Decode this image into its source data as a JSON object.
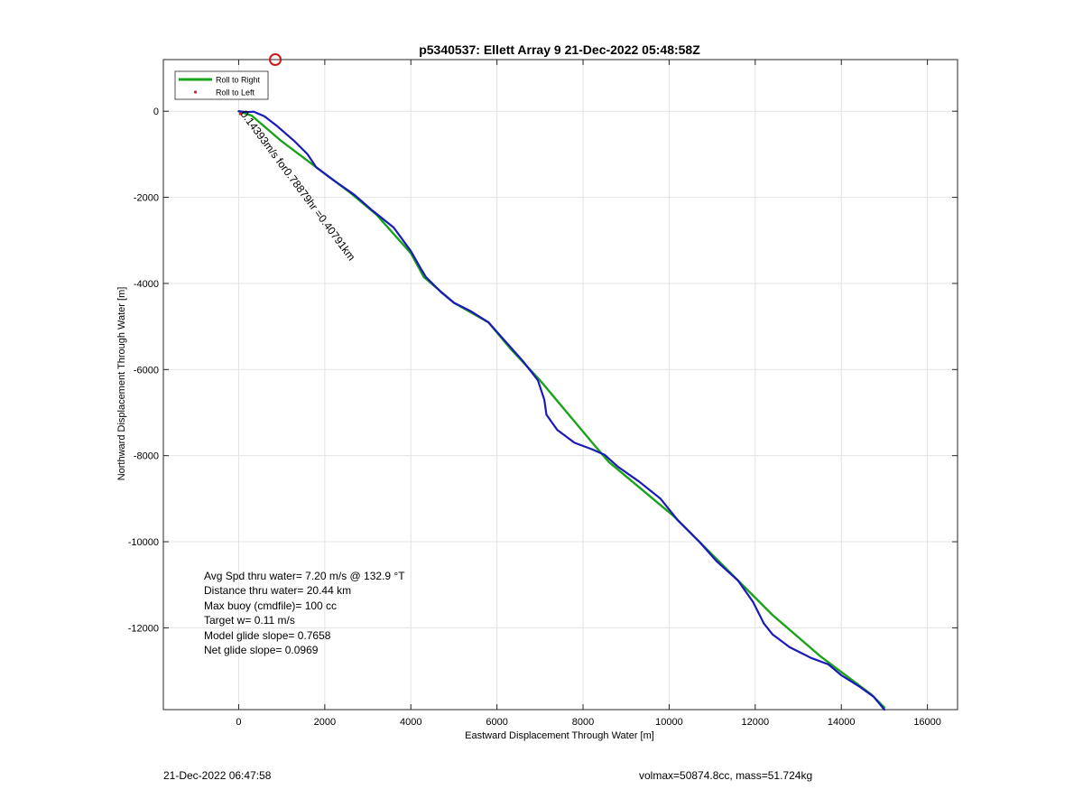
{
  "chart_data": {
    "type": "line",
    "title": "p5340537: Ellett Array 9 21-Dec-2022 05:48:58Z",
    "xlabel": "Eastward Displacement Through Water [m]",
    "ylabel": "Northward Displacement Through Water [m]",
    "xlim": [
      -1750,
      16700
    ],
    "ylim": [
      -13900,
      1200
    ],
    "x_ticks": [
      0,
      2000,
      4000,
      6000,
      8000,
      10000,
      12000,
      14000,
      16000
    ],
    "y_ticks": [
      0,
      -2000,
      -4000,
      -6000,
      -8000,
      -10000,
      -12000
    ],
    "grid": true,
    "legend": {
      "position": "top-left",
      "entries": [
        {
          "label": "Roll to Right",
          "color": "#1aa31a",
          "style": "line"
        },
        {
          "label": "Roll to Left",
          "color": "#e02020",
          "style": "dot"
        }
      ]
    },
    "series": [
      {
        "color": "#1aa31a",
        "points": [
          [
            0,
            0
          ],
          [
            300,
            -100
          ],
          [
            1000,
            -700
          ],
          [
            1800,
            -1300
          ],
          [
            2600,
            -1900
          ],
          [
            3200,
            -2400
          ],
          [
            4000,
            -3300
          ],
          [
            4300,
            -3850
          ],
          [
            5000,
            -4450
          ],
          [
            5800,
            -4900
          ],
          [
            6300,
            -5500
          ],
          [
            7000,
            -6250
          ],
          [
            8300,
            -7800
          ],
          [
            8600,
            -8150
          ],
          [
            9500,
            -8900
          ],
          [
            10100,
            -9400
          ],
          [
            11400,
            -10700
          ],
          [
            12400,
            -11700
          ],
          [
            13500,
            -12650
          ],
          [
            14100,
            -13100
          ],
          [
            14700,
            -13550
          ],
          [
            15000,
            -13850
          ]
        ]
      },
      {
        "color": "#1a1ab8",
        "points": [
          [
            0,
            0
          ],
          [
            180,
            -20
          ],
          [
            350,
            -10
          ],
          [
            600,
            -120
          ],
          [
            900,
            -350
          ],
          [
            1300,
            -700
          ],
          [
            1600,
            -1000
          ],
          [
            1800,
            -1300
          ],
          [
            2200,
            -1600
          ],
          [
            2700,
            -1950
          ],
          [
            3100,
            -2300
          ],
          [
            3600,
            -2700
          ],
          [
            4000,
            -3250
          ],
          [
            4200,
            -3600
          ],
          [
            4350,
            -3850
          ],
          [
            4700,
            -4200
          ],
          [
            5000,
            -4450
          ],
          [
            5400,
            -4650
          ],
          [
            5800,
            -4900
          ],
          [
            6200,
            -5350
          ],
          [
            6600,
            -5800
          ],
          [
            6950,
            -6250
          ],
          [
            7100,
            -6700
          ],
          [
            7150,
            -7050
          ],
          [
            7400,
            -7400
          ],
          [
            7800,
            -7700
          ],
          [
            8200,
            -7850
          ],
          [
            8500,
            -7980
          ],
          [
            8800,
            -8250
          ],
          [
            9300,
            -8600
          ],
          [
            9800,
            -9000
          ],
          [
            10200,
            -9500
          ],
          [
            10700,
            -10000
          ],
          [
            11100,
            -10450
          ],
          [
            11600,
            -10900
          ],
          [
            11950,
            -11400
          ],
          [
            12200,
            -11900
          ],
          [
            12400,
            -12150
          ],
          [
            12800,
            -12450
          ],
          [
            13300,
            -12700
          ],
          [
            13700,
            -12850
          ],
          [
            14000,
            -13100
          ],
          [
            14400,
            -13350
          ],
          [
            14750,
            -13600
          ],
          [
            15000,
            -13900
          ]
        ]
      }
    ],
    "annotations": [
      {
        "text": "0.14393m/s for0.78879hr =0.40791km",
        "x": 30,
        "y": -60,
        "angle_deg": 53.3
      }
    ],
    "markers": [
      {
        "type": "circle",
        "x": 850,
        "y": 1200,
        "color": "#cc1a1a"
      }
    ]
  },
  "stats_lines": [
    "Avg Spd thru water=  7.20 m/s @ 132.9 °T",
    "Distance thru water= 20.44 km",
    "Max buoy (cmdfile)= 100 cc",
    "Target w= 0.11 m/s",
    "Model glide slope= 0.7658",
    "Net glide slope= 0.0969"
  ],
  "footer": {
    "left": "21-Dec-2022 06:47:58",
    "right": "volmax=50874.8cc, mass=51.724kg"
  }
}
